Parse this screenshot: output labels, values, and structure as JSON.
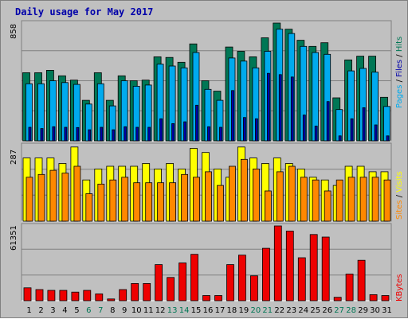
{
  "chart_data": {
    "type": "bar",
    "title": "Daily usage for May 2017",
    "categories": [
      "1",
      "2",
      "3",
      "4",
      "5",
      "6",
      "7",
      "8",
      "9",
      "10",
      "11",
      "12",
      "13",
      "14",
      "15",
      "16",
      "17",
      "18",
      "19",
      "20",
      "21",
      "22",
      "23",
      "24",
      "25",
      "26",
      "27",
      "28",
      "29",
      "30",
      "31"
    ],
    "weekend_days": [
      6,
      7,
      13,
      14,
      20,
      21,
      27,
      28
    ],
    "colors": {
      "hits": "#007755",
      "files": "#00aaee",
      "pages": "#0000aa",
      "visits": "#ffff00",
      "sites": "#ff8800",
      "kbytes": "#ee0000",
      "title": "#0000aa",
      "weekday_tick": "#000000",
      "weekend_tick": "#007755",
      "grid": "#808080",
      "panel_bg": "#c0c0c0"
    },
    "panels": {
      "top": {
        "max_label": "858",
        "legend": {
          "pages": "Pages",
          "files": "Files",
          "hits": "Hits",
          "sep": " / "
        },
        "series": [
          {
            "name": "Hits",
            "values": [
              555,
              555,
              575,
              530,
              495,
              330,
              555,
              330,
              530,
              490,
              495,
              685,
              680,
              640,
              790,
              490,
              405,
              765,
              730,
              685,
              840,
              960,
              910,
              820,
              770,
              800,
              350,
              660,
              690,
              690,
              355
            ]
          },
          {
            "name": "Files",
            "values": [
              465,
              465,
              490,
              475,
              460,
              300,
              465,
              285,
              490,
              445,
              455,
              625,
              610,
              595,
              720,
              420,
              330,
              675,
              650,
              595,
              730,
              910,
              875,
              770,
              720,
              705,
              255,
              570,
              590,
              560,
              280
            ]
          },
          {
            "name": "Pages",
            "values": [
              110,
              100,
              115,
              110,
              108,
              90,
              110,
              90,
              115,
              110,
              110,
              180,
              140,
              155,
              290,
              115,
              110,
              410,
              190,
              180,
              550,
              540,
              520,
              210,
              120,
              320,
              40,
              180,
              270,
              130,
              40
            ]
          }
        ]
      },
      "middle": {
        "max_label": "287",
        "legend": {
          "sites": "Sites",
          "visits": "Visits",
          "sep": " / "
        },
        "series": [
          {
            "name": "Visits",
            "values": [
              230,
              230,
              230,
              210,
              270,
              150,
              190,
              200,
              200,
              200,
              210,
              190,
              210,
              190,
              265,
              250,
              190,
              160,
              270,
              230,
              210,
              230,
              210,
              190,
              160,
              150,
              130,
              200,
              200,
              180,
              180
            ]
          },
          {
            "name": "Sites",
            "values": [
              160,
              170,
              185,
              175,
              200,
              100,
              135,
              150,
              160,
              140,
              140,
              140,
              140,
              170,
              160,
              180,
              130,
              200,
              225,
              190,
              110,
              180,
              200,
              160,
              150,
              110,
              150,
              160,
              160,
              160,
              150
            ]
          }
        ]
      },
      "bottom": {
        "max_label": "61351",
        "legend": {
          "kbytes": "KBytes"
        },
        "series": [
          {
            "name": "KBytes",
            "values": [
              15,
              13,
              12,
              12,
              10,
              12,
              8,
              2,
              13,
              20,
              20,
              42,
              27,
              44,
              54,
              6,
              6,
              42,
              53,
              29,
              61,
              87,
              81,
              50,
              77,
              74,
              4,
              31,
              47,
              7,
              6
            ]
          }
        ]
      }
    }
  }
}
